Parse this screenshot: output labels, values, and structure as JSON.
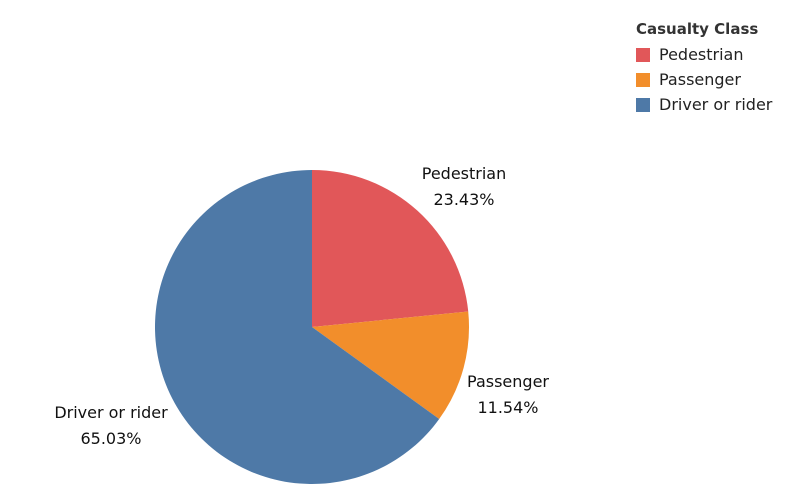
{
  "chart_data": {
    "type": "pie",
    "title": "",
    "legend": {
      "title": "Casualty Class",
      "placement": "top-right",
      "items": [
        {
          "label": "Pedestrian",
          "color": "#e15759"
        },
        {
          "label": "Passenger",
          "color": "#f28e2b"
        },
        {
          "label": "Driver or rider",
          "color": "#4e79a7"
        }
      ]
    },
    "slices": [
      {
        "label": "Pedestrian",
        "value": 23.43,
        "value_label": "23.43%",
        "color": "#e15759"
      },
      {
        "label": "Passenger",
        "value": 11.54,
        "value_label": "11.54%",
        "color": "#f28e2b"
      },
      {
        "label": "Driver or rider",
        "value": 65.03,
        "value_label": "65.03%",
        "color": "#4e79a7"
      }
    ],
    "start_angle": "12 o'clock",
    "direction": "clockwise"
  }
}
